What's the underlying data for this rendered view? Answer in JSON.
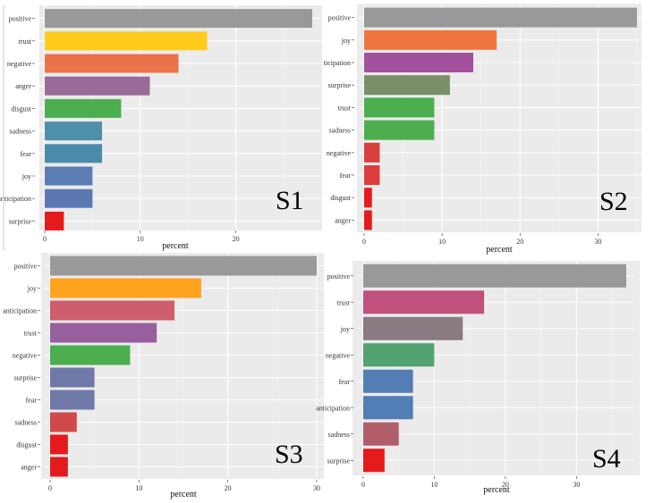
{
  "chart_data": [
    {
      "type": "bar",
      "orientation": "horizontal",
      "panel_label": "S1",
      "xlabel": "percent",
      "xlim": [
        0,
        28
      ],
      "xticks": [
        0,
        10,
        20
      ],
      "categories": [
        "positive",
        "trust",
        "negative",
        "anger",
        "disgust",
        "sadness",
        "fear",
        "joy",
        "anticipation",
        "surprise"
      ],
      "values": [
        28,
        17,
        14,
        11,
        8,
        6,
        6,
        5,
        5,
        2
      ],
      "colors": [
        "#999999",
        "#FFCC1E",
        "#EB734A",
        "#9A6A98",
        "#4CAE4F",
        "#4F8FA9",
        "#4B8AA8",
        "#5B7DB4",
        "#5C78B3",
        "#E41A1C"
      ]
    },
    {
      "type": "bar",
      "orientation": "horizontal",
      "panel_label": "S2",
      "xlabel": "percent",
      "xlim": [
        0,
        35
      ],
      "xticks": [
        0,
        10,
        20,
        30
      ],
      "categories": [
        "positive",
        "joy",
        "ticipation",
        "surprise",
        "trust",
        "sadness",
        "negative",
        "fear",
        "disgust",
        "anger"
      ],
      "values": [
        35,
        17,
        14,
        11,
        9,
        9,
        2,
        2,
        1,
        1
      ],
      "colors": [
        "#999999",
        "#F0753E",
        "#A3509D",
        "#7A8F68",
        "#4CAE4F",
        "#4CAE4F",
        "#D83F3E",
        "#DC3D3C",
        "#E41A1C",
        "#E41A1C"
      ]
    },
    {
      "type": "bar",
      "orientation": "horizontal",
      "panel_label": "S3",
      "xlabel": "percent",
      "xlim": [
        0,
        30
      ],
      "xticks": [
        0,
        10,
        20,
        30
      ],
      "categories": [
        "positive",
        "joy",
        "anticipation",
        "trust",
        "negative",
        "surprise",
        "fear",
        "sadness",
        "disgust",
        "anger"
      ],
      "values": [
        30,
        17,
        14,
        12,
        9,
        5,
        5,
        3,
        2,
        2
      ],
      "colors": [
        "#999999",
        "#FFA21E",
        "#CE5E6C",
        "#985F9F",
        "#4CAE4F",
        "#6F79A8",
        "#6F79A8",
        "#D04A4A",
        "#E41A1C",
        "#E41A1C"
      ]
    },
    {
      "type": "bar",
      "orientation": "horizontal",
      "panel_label": "S4",
      "xlabel": "percent",
      "xlim": [
        0,
        37
      ],
      "xticks": [
        0,
        10,
        20,
        30
      ],
      "categories": [
        "positive",
        "trust",
        "joy",
        "negative",
        "fear",
        "anticipation",
        "sadness",
        "surprise"
      ],
      "values": [
        37,
        17,
        14,
        10,
        7,
        7,
        5,
        3
      ],
      "colors": [
        "#999999",
        "#C0507C",
        "#8A7A82",
        "#52A370",
        "#527DB5",
        "#527DB5",
        "#B25E6A",
        "#E41A1C"
      ]
    }
  ]
}
